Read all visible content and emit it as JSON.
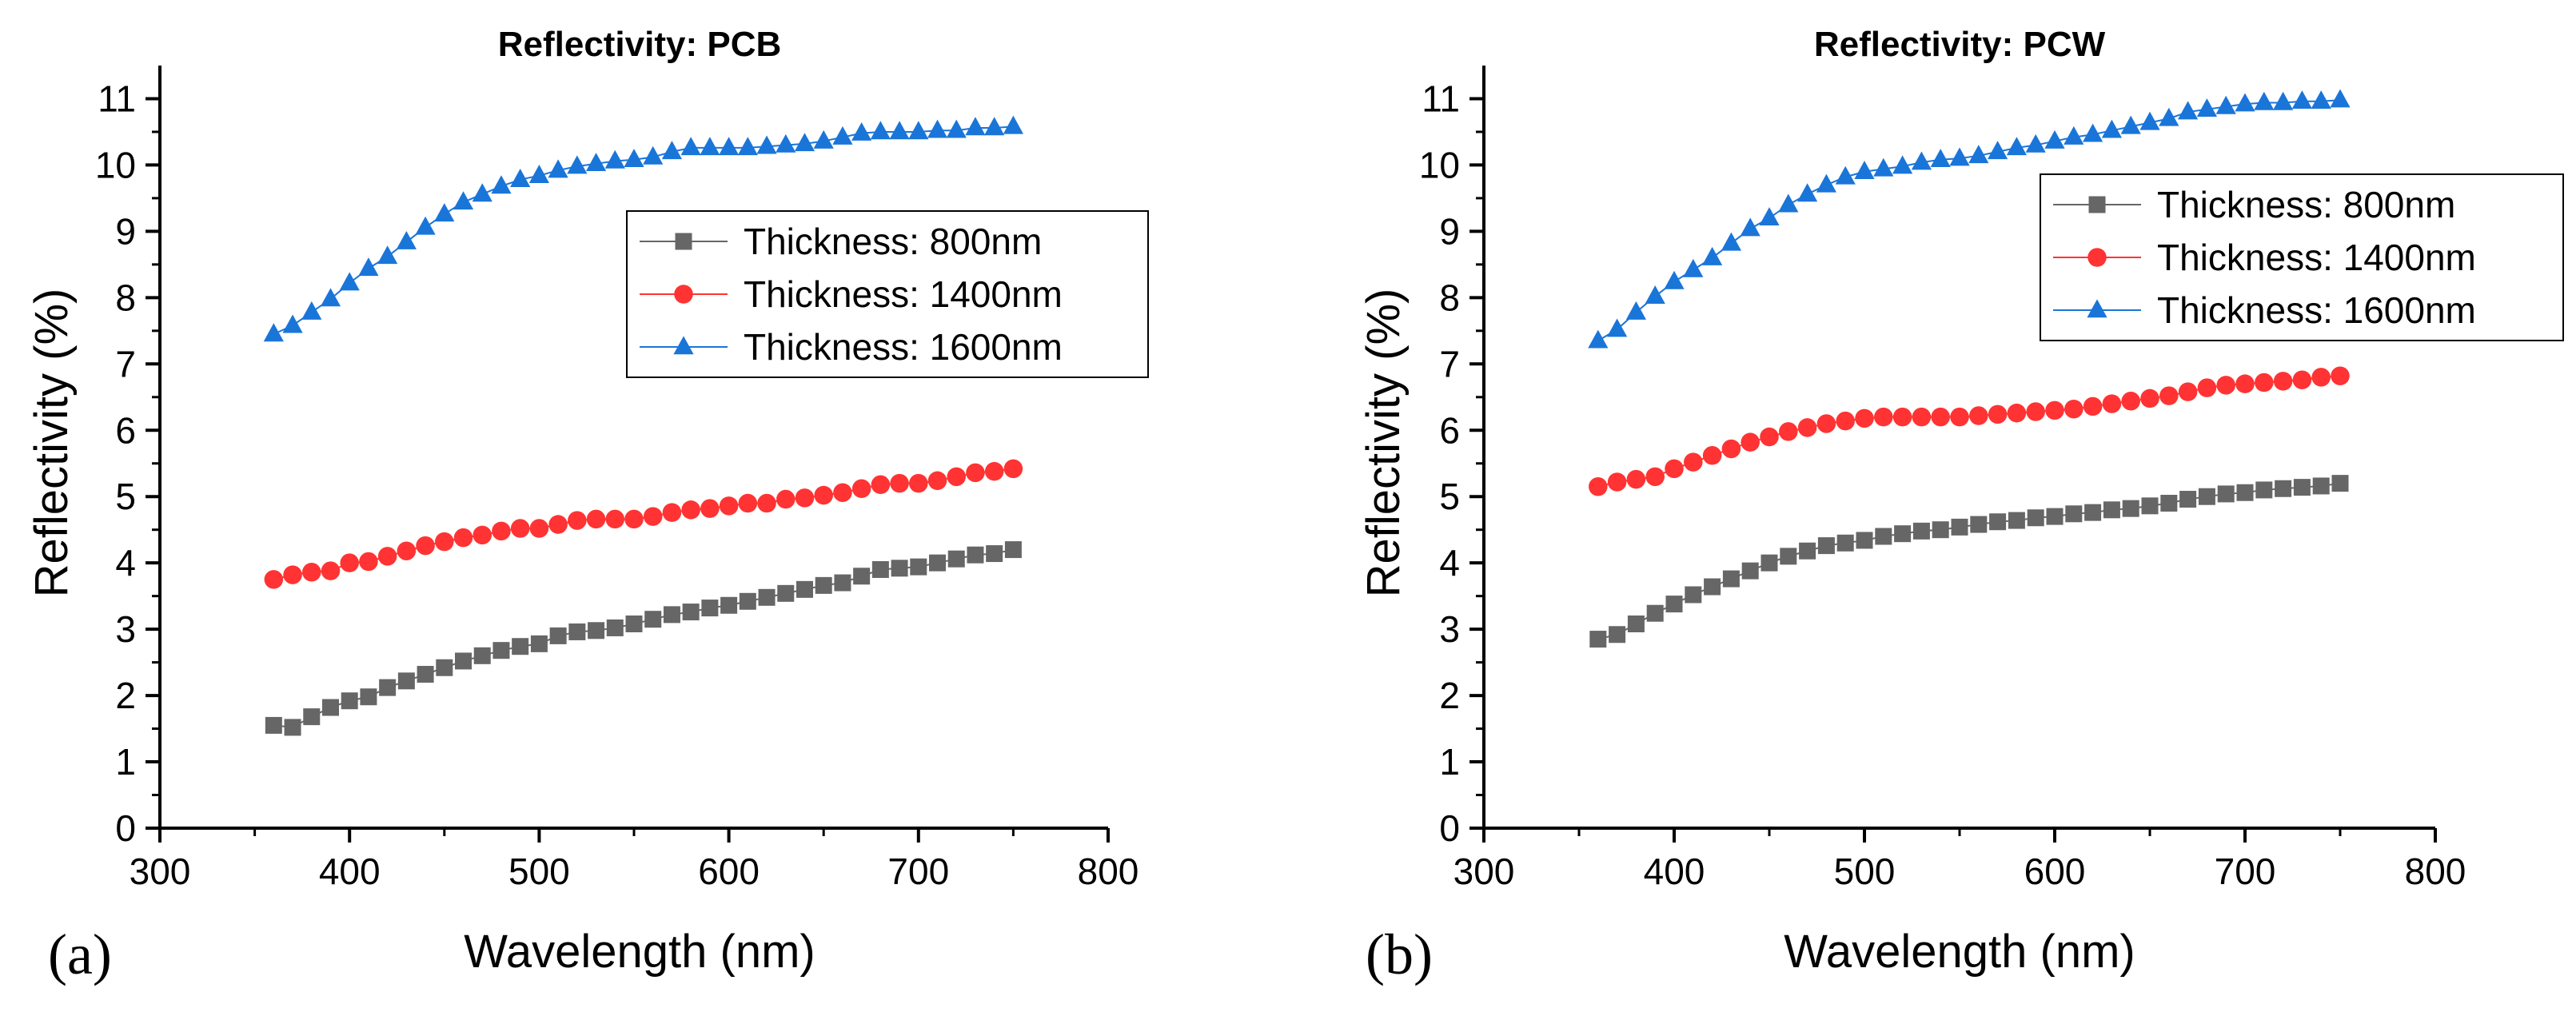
{
  "colors": {
    "series_800": "#666666",
    "series_1400": "#ff3333",
    "series_1600": "#1a75d9",
    "axis": "#000000"
  },
  "chart_data": [
    {
      "type": "scatter",
      "panel_label": "(a)",
      "title": "Reflectivity: PCB",
      "xlabel": "Wavelength (nm)",
      "ylabel": "Reflectivity (%)",
      "xlim": [
        300,
        800
      ],
      "ylim": [
        0,
        11.5
      ],
      "xticks": [
        300,
        400,
        500,
        600,
        700,
        800
      ],
      "yticks": [
        0,
        1,
        2,
        3,
        4,
        5,
        6,
        7,
        8,
        9,
        10,
        11
      ],
      "legend_position": "right-middle",
      "x": [
        360,
        370,
        380,
        390,
        400,
        410,
        420,
        430,
        440,
        450,
        460,
        470,
        480,
        490,
        500,
        510,
        520,
        530,
        540,
        550,
        560,
        570,
        580,
        590,
        600,
        610,
        620,
        630,
        640,
        650,
        660,
        670,
        680,
        690,
        700,
        710,
        720,
        730,
        740,
        750
      ],
      "series": [
        {
          "name": "Thickness: 800nm",
          "marker": "square",
          "color_key": "series_800",
          "values": [
            1.55,
            1.52,
            1.68,
            1.82,
            1.92,
            1.98,
            2.12,
            2.22,
            2.32,
            2.42,
            2.52,
            2.6,
            2.68,
            2.74,
            2.78,
            2.9,
            2.96,
            2.98,
            3.02,
            3.08,
            3.15,
            3.22,
            3.26,
            3.32,
            3.36,
            3.42,
            3.48,
            3.54,
            3.6,
            3.66,
            3.7,
            3.8,
            3.9,
            3.92,
            3.94,
            4.0,
            4.06,
            4.12,
            4.14,
            4.2
          ]
        },
        {
          "name": "Thickness: 1400nm",
          "marker": "circle",
          "color_key": "series_1400",
          "values": [
            3.75,
            3.82,
            3.86,
            3.88,
            4.0,
            4.02,
            4.1,
            4.18,
            4.26,
            4.32,
            4.38,
            4.42,
            4.48,
            4.52,
            4.52,
            4.58,
            4.64,
            4.66,
            4.66,
            4.66,
            4.7,
            4.76,
            4.8,
            4.82,
            4.86,
            4.9,
            4.9,
            4.96,
            4.98,
            5.02,
            5.06,
            5.12,
            5.18,
            5.2,
            5.2,
            5.24,
            5.3,
            5.36,
            5.38,
            5.42
          ]
        },
        {
          "name": "Thickness: 1600nm",
          "marker": "triangle",
          "color_key": "series_1600",
          "values": [
            7.45,
            7.58,
            7.78,
            7.98,
            8.22,
            8.44,
            8.62,
            8.84,
            9.06,
            9.26,
            9.44,
            9.56,
            9.68,
            9.78,
            9.84,
            9.92,
            9.98,
            10.02,
            10.06,
            10.08,
            10.12,
            10.2,
            10.26,
            10.26,
            10.26,
            10.26,
            10.28,
            10.3,
            10.32,
            10.36,
            10.42,
            10.48,
            10.5,
            10.5,
            10.5,
            10.52,
            10.52,
            10.56,
            10.56,
            10.58
          ]
        }
      ]
    },
    {
      "type": "scatter",
      "panel_label": "(b)",
      "title": "Reflectivity: PCW",
      "xlabel": "Wavelength (nm)",
      "ylabel": "Reflectivity (%)",
      "xlim": [
        300,
        800
      ],
      "ylim": [
        0,
        11.5
      ],
      "xticks": [
        300,
        400,
        500,
        600,
        700,
        800
      ],
      "yticks": [
        0,
        1,
        2,
        3,
        4,
        5,
        6,
        7,
        8,
        9,
        10,
        11
      ],
      "legend_position": "top-right",
      "x": [
        360,
        370,
        380,
        390,
        400,
        410,
        420,
        430,
        440,
        450,
        460,
        470,
        480,
        490,
        500,
        510,
        520,
        530,
        540,
        550,
        560,
        570,
        580,
        590,
        600,
        610,
        620,
        630,
        640,
        650,
        660,
        670,
        680,
        690,
        700,
        710,
        720,
        730,
        740,
        750
      ],
      "series": [
        {
          "name": "Thickness: 800nm",
          "marker": "square",
          "color_key": "series_800",
          "values": [
            2.85,
            2.92,
            3.08,
            3.24,
            3.38,
            3.52,
            3.64,
            3.76,
            3.88,
            4.0,
            4.1,
            4.18,
            4.26,
            4.3,
            4.34,
            4.4,
            4.44,
            4.48,
            4.5,
            4.54,
            4.58,
            4.62,
            4.64,
            4.68,
            4.7,
            4.74,
            4.76,
            4.8,
            4.82,
            4.86,
            4.9,
            4.96,
            5.0,
            5.04,
            5.06,
            5.1,
            5.12,
            5.14,
            5.16,
            5.2
          ]
        },
        {
          "name": "Thickness: 1400nm",
          "marker": "circle",
          "color_key": "series_1400",
          "values": [
            5.15,
            5.22,
            5.26,
            5.3,
            5.42,
            5.52,
            5.62,
            5.72,
            5.82,
            5.9,
            5.98,
            6.04,
            6.1,
            6.14,
            6.18,
            6.2,
            6.2,
            6.2,
            6.2,
            6.2,
            6.22,
            6.24,
            6.26,
            6.28,
            6.3,
            6.32,
            6.36,
            6.4,
            6.44,
            6.48,
            6.52,
            6.58,
            6.64,
            6.68,
            6.7,
            6.72,
            6.74,
            6.76,
            6.8,
            6.82
          ]
        },
        {
          "name": "Thickness: 1600nm",
          "marker": "triangle",
          "color_key": "series_1600",
          "values": [
            7.35,
            7.52,
            7.78,
            8.02,
            8.24,
            8.42,
            8.6,
            8.82,
            9.04,
            9.2,
            9.4,
            9.56,
            9.7,
            9.82,
            9.9,
            9.94,
            9.98,
            10.04,
            10.08,
            10.1,
            10.14,
            10.2,
            10.26,
            10.3,
            10.36,
            10.42,
            10.46,
            10.52,
            10.58,
            10.64,
            10.7,
            10.8,
            10.84,
            10.88,
            10.92,
            10.94,
            10.94,
            10.96,
            10.96,
            10.98
          ]
        }
      ]
    }
  ]
}
